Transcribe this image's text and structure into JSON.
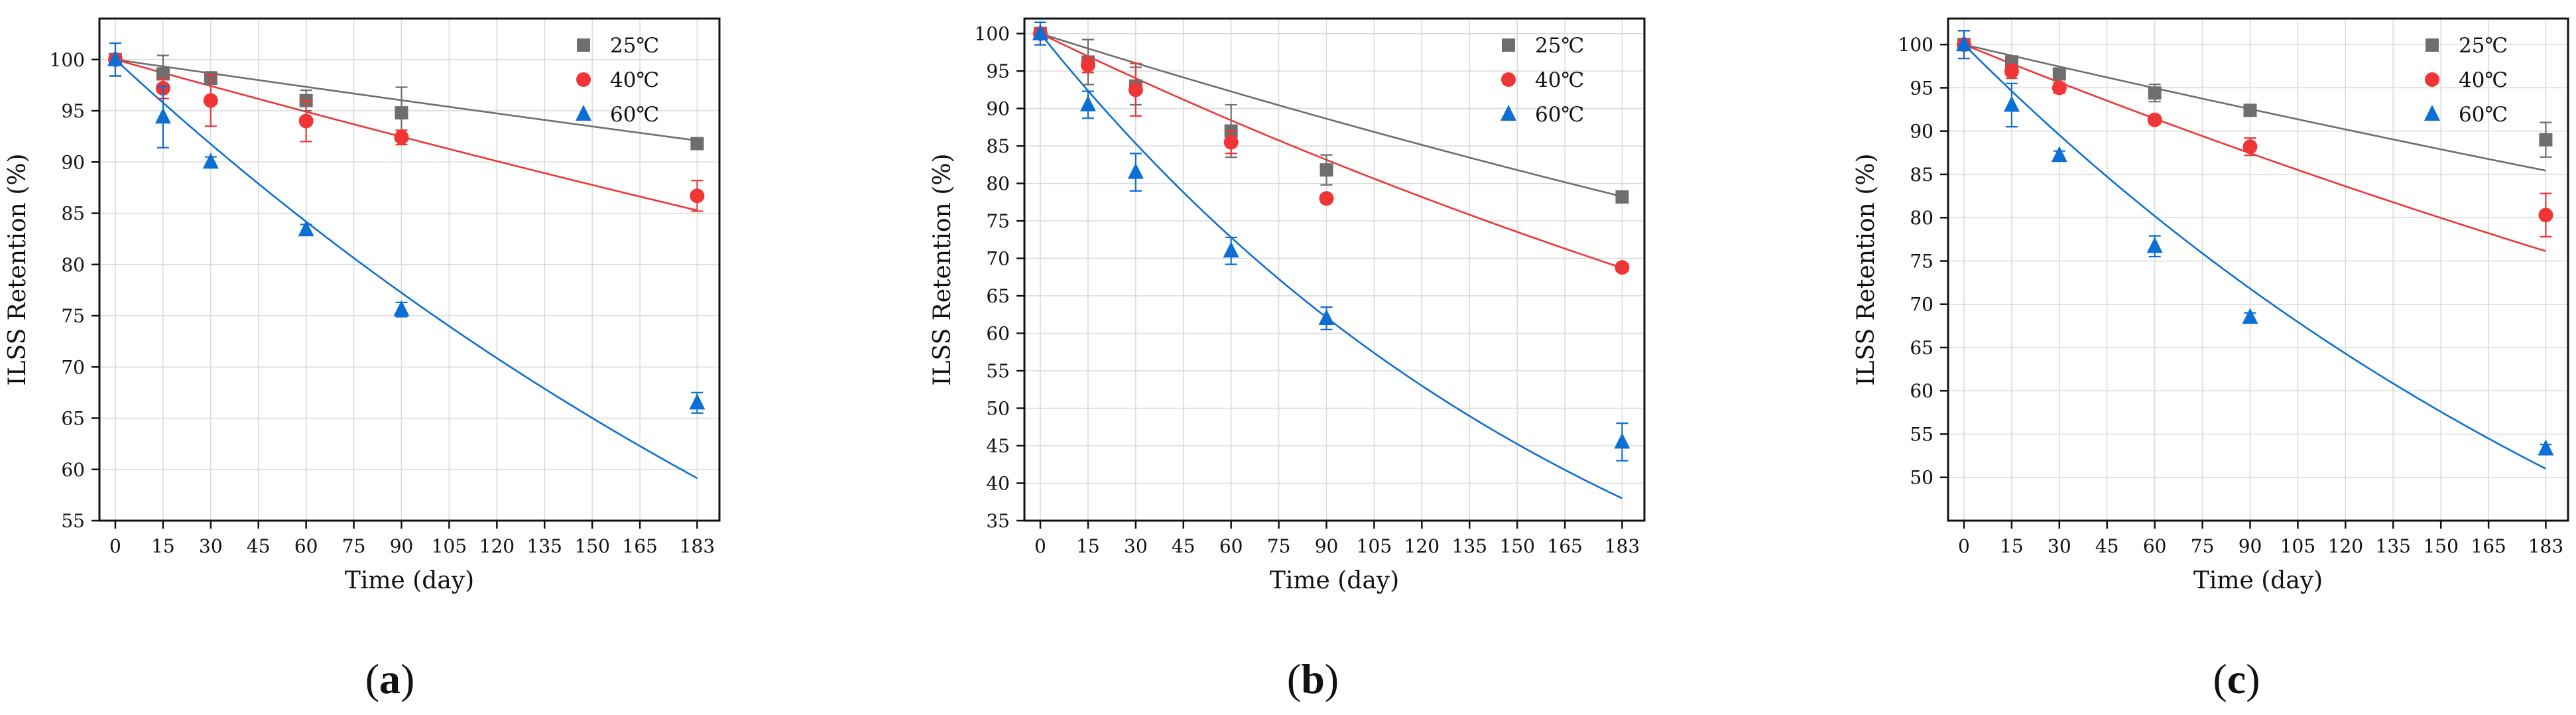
{
  "figure": {
    "panel_label_parens": [
      "(",
      ")"
    ],
    "colors": {
      "25": "#6e6e6e",
      "40": "#ef3535",
      "60": "#0b6fd6"
    }
  },
  "chart_data": [
    {
      "panel": "a",
      "type": "scatter",
      "xlabel": "Time (day)",
      "ylabel": "ILSS Retention (%)",
      "xlim": [
        -5,
        190
      ],
      "ylim": [
        55,
        104
      ],
      "xticks": [
        0,
        15,
        30,
        45,
        60,
        75,
        90,
        105,
        120,
        135,
        150,
        165,
        183
      ],
      "yticks": [
        55,
        60,
        65,
        70,
        75,
        80,
        85,
        90,
        95,
        100
      ],
      "grid": true,
      "legend": "top-right",
      "series": [
        {
          "name": "25℃",
          "key": "25",
          "marker": "square",
          "points": [
            [
              0,
              100
            ],
            [
              15,
              98.6
            ],
            [
              30,
              98.2
            ],
            [
              60,
              96
            ],
            [
              90,
              94.8
            ],
            [
              183,
              91.8
            ]
          ],
          "err": [
            1.6,
            1.8,
            0.6,
            1.0,
            2.5,
            0.5
          ],
          "fit_k": 0.00045
        },
        {
          "name": "40℃",
          "key": "40",
          "marker": "circle",
          "points": [
            [
              0,
              100
            ],
            [
              15,
              97.2
            ],
            [
              30,
              96
            ],
            [
              60,
              94
            ],
            [
              90,
              92.4
            ],
            [
              183,
              86.7
            ]
          ],
          "err": [
            1.6,
            1.0,
            2.5,
            2.0,
            0.7,
            1.5
          ],
          "fit_k": 0.00087
        },
        {
          "name": "60℃",
          "key": "60",
          "marker": "triangle",
          "points": [
            [
              0,
              100
            ],
            [
              15,
              94.4
            ],
            [
              30,
              90
            ],
            [
              60,
              83.4
            ],
            [
              90,
              75.6
            ],
            [
              183,
              66.5
            ]
          ],
          "err": [
            1.6,
            3.0,
            0.5,
            0.5,
            0.7,
            1.0
          ],
          "fit_k": 0.00287
        }
      ]
    },
    {
      "panel": "b",
      "type": "scatter",
      "xlabel": "Time (day)",
      "ylabel": "ILSS Retention (%)",
      "xlim": [
        -5,
        190
      ],
      "ylim": [
        35,
        102
      ],
      "xticks": [
        0,
        15,
        30,
        45,
        60,
        75,
        90,
        105,
        120,
        135,
        150,
        165,
        183
      ],
      "yticks": [
        35,
        40,
        45,
        50,
        55,
        60,
        65,
        70,
        75,
        80,
        85,
        90,
        95,
        100
      ],
      "grid": true,
      "legend": "top-right",
      "series": [
        {
          "name": "25℃",
          "key": "25",
          "marker": "square",
          "points": [
            [
              0,
              100
            ],
            [
              15,
              96.2
            ],
            [
              30,
              93
            ],
            [
              60,
              87
            ],
            [
              90,
              81.8
            ],
            [
              183,
              78.2
            ]
          ],
          "err": [
            1.5,
            3.0,
            2.5,
            3.5,
            2.0,
            0.5
          ],
          "fit_k": 0.00134
        },
        {
          "name": "40℃",
          "key": "40",
          "marker": "circle",
          "points": [
            [
              0,
              100
            ],
            [
              15,
              95.8
            ],
            [
              30,
              92.5
            ],
            [
              60,
              85.5
            ],
            [
              90,
              78
            ],
            [
              183,
              68.8
            ]
          ],
          "err": [
            1.5,
            1.0,
            3.5,
            1.5,
            0.5,
            0.5
          ],
          "fit_k": 0.00205
        },
        {
          "name": "60℃",
          "key": "60",
          "marker": "triangle",
          "points": [
            [
              0,
              100
            ],
            [
              15,
              90.5
            ],
            [
              30,
              81.5
            ],
            [
              60,
              71
            ],
            [
              90,
              62
            ],
            [
              183,
              45.5
            ]
          ],
          "err": [
            1.5,
            1.8,
            2.5,
            1.8,
            1.5,
            2.5
          ],
          "fit_k": 0.00529
        }
      ]
    },
    {
      "panel": "c",
      "type": "scatter",
      "xlabel": "Time (day)",
      "ylabel": "ILSS Retention (%)",
      "xlim": [
        -5,
        190
      ],
      "ylim": [
        45,
        103
      ],
      "xticks": [
        0,
        15,
        30,
        45,
        60,
        75,
        90,
        105,
        120,
        135,
        150,
        165,
        183
      ],
      "yticks": [
        50,
        55,
        60,
        65,
        70,
        75,
        80,
        85,
        90,
        95,
        100
      ],
      "grid": true,
      "legend": "top-right",
      "series": [
        {
          "name": "25℃",
          "key": "25",
          "marker": "square",
          "points": [
            [
              0,
              100
            ],
            [
              15,
              98
            ],
            [
              30,
              96.6
            ],
            [
              60,
              94.4
            ],
            [
              90,
              92.4
            ],
            [
              183,
              89
            ]
          ],
          "err": [
            1.6,
            0.6,
            0.6,
            1.0,
            0.5,
            2.0
          ],
          "fit_k": 0.00086
        },
        {
          "name": "40℃",
          "key": "40",
          "marker": "circle",
          "points": [
            [
              0,
              100
            ],
            [
              15,
              96.9
            ],
            [
              30,
              95
            ],
            [
              60,
              91.3
            ],
            [
              90,
              88.2
            ],
            [
              183,
              80.3
            ]
          ],
          "err": [
            1.6,
            0.8,
            0.6,
            0.5,
            1.0,
            2.5
          ],
          "fit_k": 0.00149
        },
        {
          "name": "60℃",
          "key": "60",
          "marker": "triangle",
          "points": [
            [
              0,
              100
            ],
            [
              15,
              93
            ],
            [
              30,
              87.2
            ],
            [
              60,
              76.7
            ],
            [
              90,
              68.5
            ],
            [
              183,
              53.3
            ]
          ],
          "err": [
            1.6,
            2.5,
            0.5,
            1.2,
            0.5,
            0.5
          ],
          "fit_k": 0.00368
        }
      ]
    }
  ]
}
